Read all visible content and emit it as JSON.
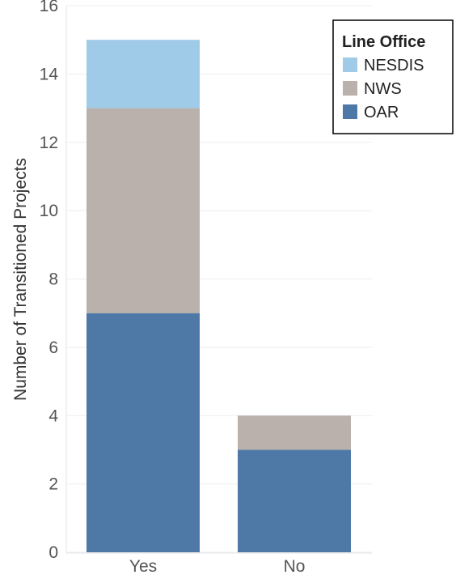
{
  "chart_data": {
    "type": "bar",
    "stacked": true,
    "categories": [
      "Yes",
      "No"
    ],
    "series": [
      {
        "name": "OAR",
        "values": [
          7,
          3
        ],
        "color": "#4e79a7"
      },
      {
        "name": "NWS",
        "values": [
          6,
          1
        ],
        "color": "#bab0ac"
      },
      {
        "name": "NESDIS",
        "values": [
          2,
          0
        ],
        "color": "#a0cbe8"
      }
    ],
    "title": "",
    "xlabel": "",
    "ylabel": "Number of Transitioned Projects",
    "ylim": [
      0,
      16
    ],
    "yticks": [
      0,
      2,
      4,
      6,
      8,
      10,
      12,
      14,
      16
    ],
    "grid": true,
    "legend": {
      "title": "Line Office",
      "placement": "top-right",
      "entries": [
        "NESDIS",
        "NWS",
        "OAR"
      ]
    }
  }
}
